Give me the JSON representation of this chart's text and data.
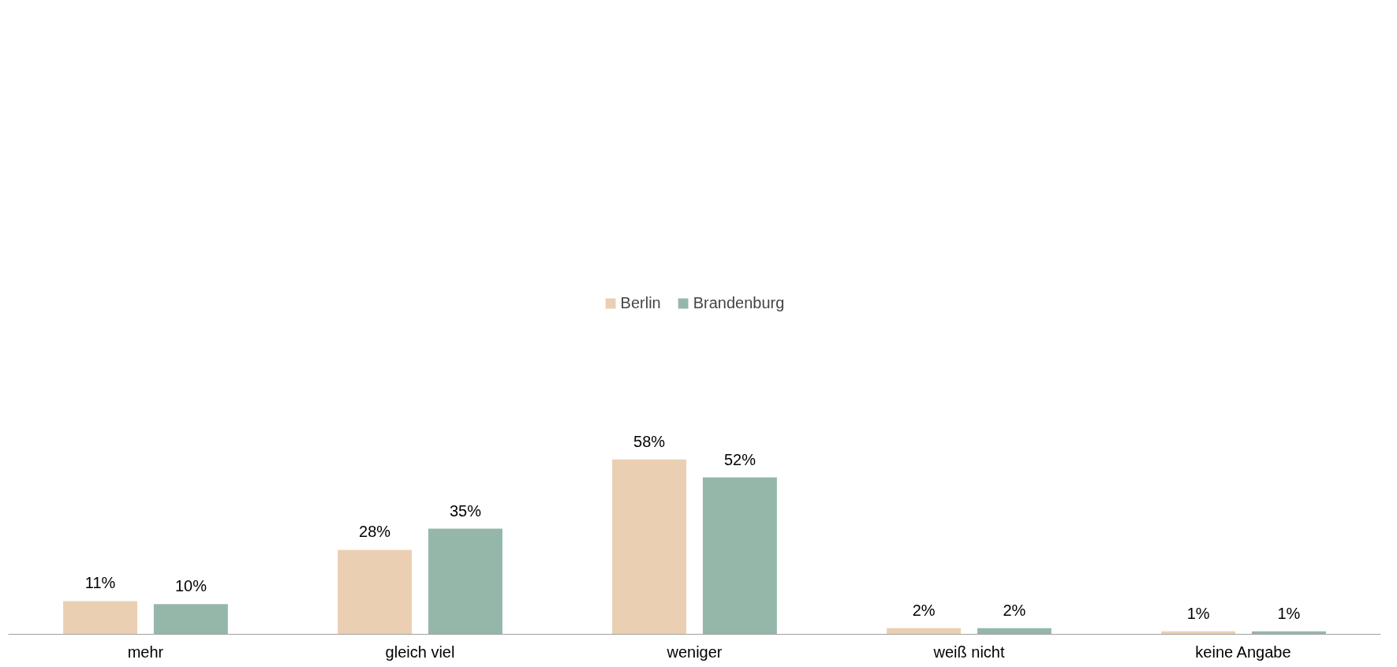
{
  "chart_data": {
    "type": "bar",
    "categories": [
      "mehr",
      "gleich viel",
      "weniger",
      "weiß nicht",
      "keine Angabe"
    ],
    "series": [
      {
        "name": "Berlin",
        "color": "#ebcfb2",
        "values": [
          11,
          28,
          58,
          2,
          1
        ],
        "value_labels": [
          "11%",
          "28%",
          "58%",
          "2%",
          "1%"
        ]
      },
      {
        "name": "Brandenburg",
        "color": "#95b7a9",
        "values": [
          10,
          35,
          52,
          2,
          1
        ],
        "value_labels": [
          "10%",
          "35%",
          "52%",
          "2%",
          "1%"
        ]
      }
    ],
    "legend": "top",
    "grid": false
  }
}
